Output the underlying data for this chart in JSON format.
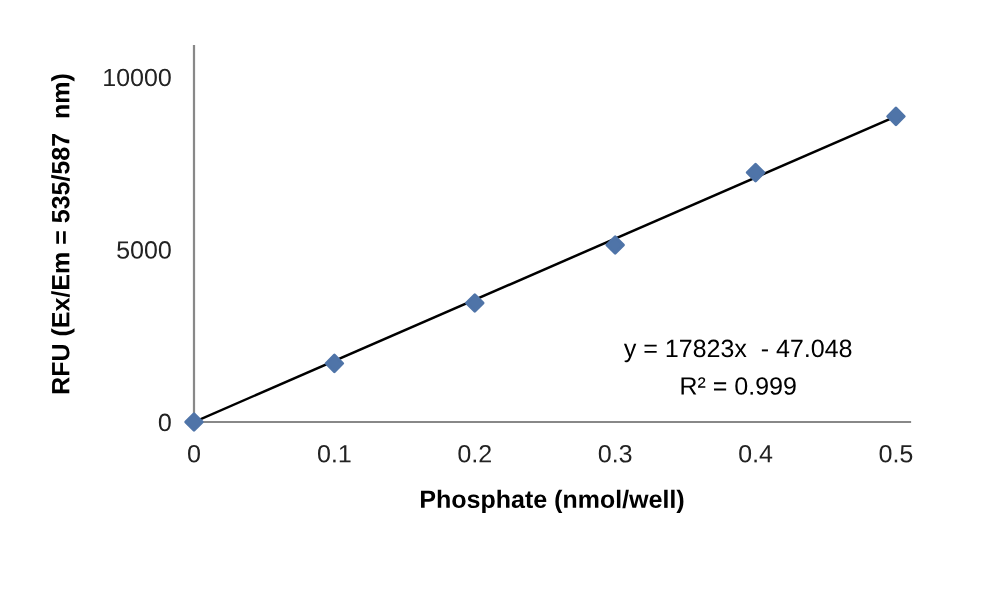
{
  "chart_data": {
    "type": "scatter",
    "xlabel": "Phosphate (nmol/well)",
    "ylabel": "RFU (Ex/Em = 535/587  nm)",
    "series": [
      {
        "color": "#4f74a8",
        "marker": "diamond",
        "x": [
          0,
          0.1,
          0.2,
          0.3,
          0.4,
          0.5
        ],
        "values": [
          0,
          1700,
          3450,
          5130,
          7230,
          8860
        ]
      },
      {
        "type": "line",
        "color": "#000000",
        "marker": "none",
        "line_style": "solid",
        "x": [
          0,
          0.5
        ],
        "values": [
          0,
          8860
        ]
      }
    ],
    "annotations": [
      "y = 17823x  - 47.048",
      "R² = 0.999"
    ],
    "xlim": [
      0,
      0.51
    ],
    "ylim": [
      0,
      10900
    ],
    "xticks": [
      0,
      0.1,
      0.2,
      0.3,
      0.4,
      0.5
    ],
    "yticks": [
      0,
      5000,
      10000
    ],
    "grid": false,
    "legend": false
  }
}
